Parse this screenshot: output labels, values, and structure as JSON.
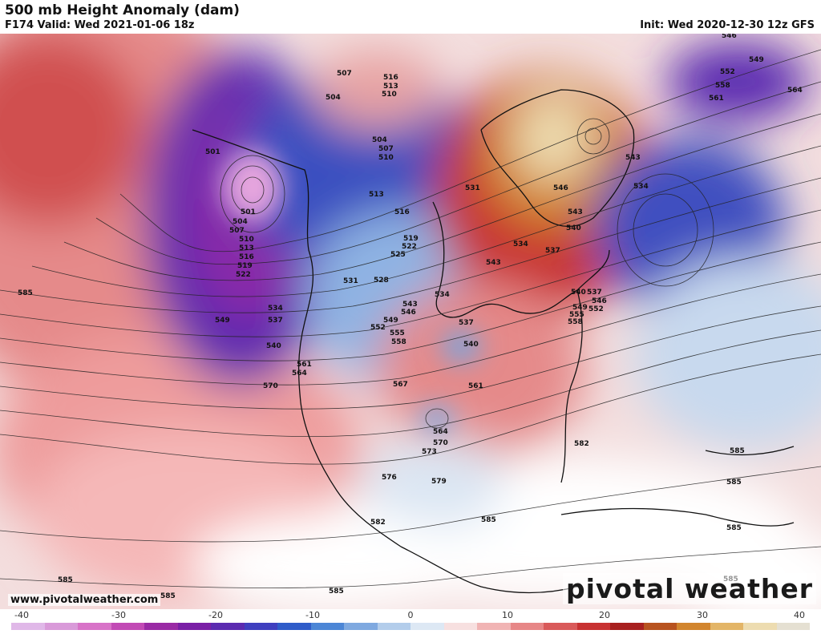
{
  "header": {
    "title": "500 mb Height Anomaly (dam)",
    "valid": "F174 Valid: Wed 2021-01-06 18z",
    "init": "Init: Wed 2020-12-30 12z GFS"
  },
  "footer": {
    "url": "www.pivotalweather.com",
    "logo": "pivotal weather"
  },
  "colorbar": {
    "ticks": [
      "-40",
      "-30",
      "-20",
      "-10",
      "0",
      "10",
      "20",
      "30",
      "40"
    ],
    "colors": [
      "#e0b8e8",
      "#d99ad9",
      "#d873c8",
      "#c24ab5",
      "#9a2aa5",
      "#7a1fa6",
      "#5b2bb0",
      "#3f3fbf",
      "#2f5cc9",
      "#4c86d6",
      "#7fa9e0",
      "#b3cdeb",
      "#dde8f4",
      "#f7e0e0",
      "#f1b4b4",
      "#e78787",
      "#d95a5a",
      "#c83232",
      "#a8201f",
      "#b8531f",
      "#d2852e",
      "#e3b567",
      "#eddcb0",
      "#e5e0d2"
    ]
  },
  "contour_labels": [
    "501",
    "504",
    "507",
    "510",
    "513",
    "516",
    "519",
    "522",
    "525",
    "528",
    "531",
    "534",
    "537",
    "540",
    "543",
    "546",
    "549",
    "552",
    "555",
    "558",
    "561",
    "564",
    "567",
    "570",
    "573",
    "576",
    "579",
    "582",
    "585"
  ],
  "colors": {
    "negative_max": "#6a1fa6",
    "negative_mid": "#3f5fc9",
    "positive_mid": "#d94a4a",
    "positive_max": "#eddcb0",
    "land_outline": "#111111"
  }
}
